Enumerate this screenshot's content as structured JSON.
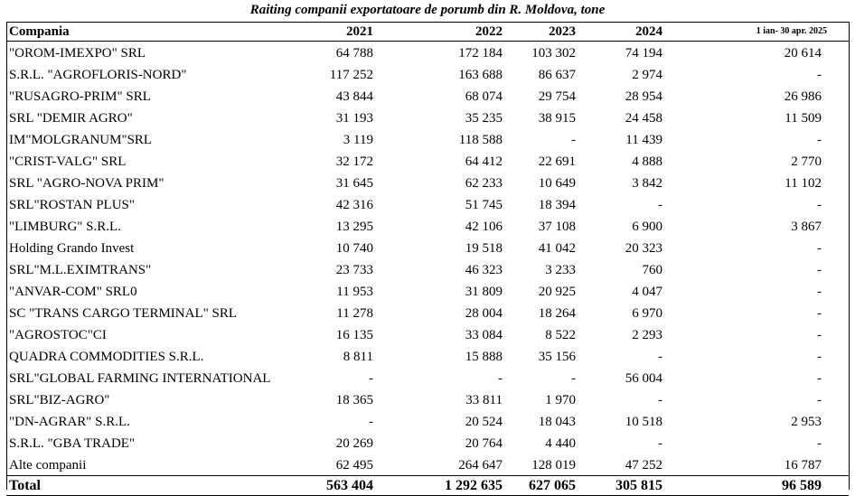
{
  "title": "Raiting companii exportatoare de porumb din R. Moldova, tone",
  "columns": [
    "Compania",
    "2021",
    "2022",
    "2023",
    "2024",
    "1 ian- 30 apr. 2025"
  ],
  "rows": [
    [
      "\"OROM-IMEXPO\" SRL",
      "64 788",
      "172 184",
      "103 302",
      "74 194",
      "20 614"
    ],
    [
      "S.R.L. \"AGROFLORIS-NORD\"",
      "117 252",
      "163 688",
      "86 637",
      "2 974",
      "-"
    ],
    [
      "\"RUSAGRO-PRIM\" SRL",
      "43 844",
      "68 074",
      "29 754",
      "28 954",
      "26 986"
    ],
    [
      "SRL \"DEMIR AGRO\"",
      "31 193",
      "35 235",
      "38 915",
      "24 458",
      "11 509"
    ],
    [
      "IM\"MOLGRANUM\"SRL",
      "3 119",
      "118 588",
      "-",
      "11 439",
      "-"
    ],
    [
      "\"CRIST-VALG\" SRL",
      "32 172",
      "64 412",
      "22 691",
      "4 888",
      "2 770"
    ],
    [
      "SRL \"AGRO-NOVA PRIM\"",
      "31 645",
      "62 233",
      "10 649",
      "3 842",
      "11 102"
    ],
    [
      "SRL\"ROSTAN PLUS\"",
      "42 316",
      "51 745",
      "18 394",
      "-",
      "-"
    ],
    [
      "\"LIMBURG\" S.R.L.",
      "13 295",
      "42 106",
      "37 108",
      "6 900",
      "3 867"
    ],
    [
      "Holding Grando Invest",
      "10 740",
      "19 518",
      "41 042",
      "20 323",
      "-"
    ],
    [
      "SRL\"M.L.EXIMTRANS\"",
      "23 733",
      "46 323",
      "3 233",
      "760",
      "-"
    ],
    [
      "\"ANVAR-COM\" SRL0",
      "11 953",
      "31 809",
      "20 925",
      "4 047",
      "-"
    ],
    [
      "SC \"TRANS CARGO TERMINAL\" SRL",
      "11 278",
      "28 004",
      "18 264",
      "6 970",
      "-"
    ],
    [
      "\"AGROSTOC\"CI",
      "16 135",
      "33 084",
      "8 522",
      "2 293",
      "-"
    ],
    [
      "QUADRA COMMODITIES S.R.L.",
      "8 811",
      "15 888",
      "35 156",
      "-",
      "-"
    ],
    [
      "SRL\"GLOBAL FARMING INTERNATIONAL",
      "-",
      "-",
      "-",
      "56 004",
      "-"
    ],
    [
      "SRL\"BIZ-AGRO\"",
      "18 365",
      "33 811",
      "1 970",
      "-",
      "-"
    ],
    [
      "\"DN-AGRAR\" S.R.L.",
      "-",
      "20 524",
      "18 043",
      "10 518",
      "2 953"
    ],
    [
      "S.R.L. \"GBA TRADE\"",
      "20 269",
      "20 764",
      "4 440",
      "-",
      "-"
    ],
    [
      "Alte companii",
      "62 495",
      "264 647",
      "128 019",
      "47 252",
      "16 787"
    ]
  ],
  "total": [
    "Total",
    "563 404",
    "1 292 635",
    "627 065",
    "305 815",
    "96 589"
  ]
}
